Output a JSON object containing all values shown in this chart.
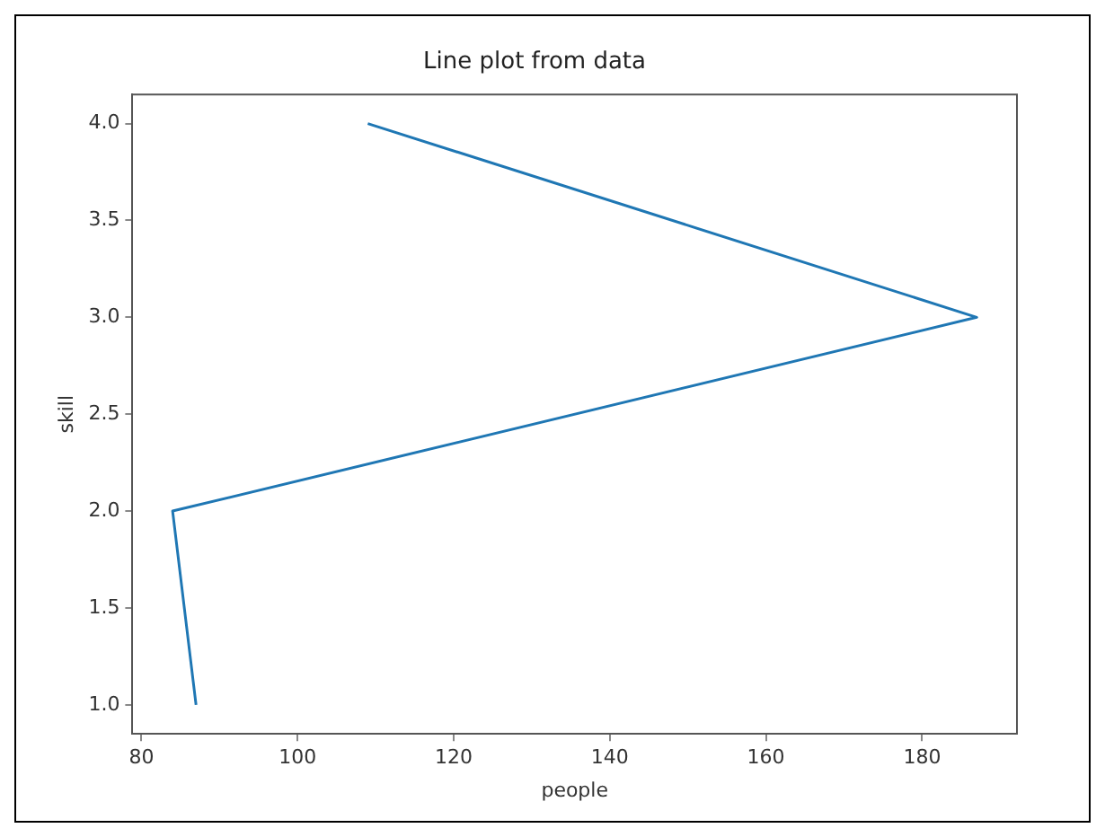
{
  "chart_data": {
    "type": "line",
    "title": "Line plot from data",
    "xlabel": "people",
    "ylabel": "skill",
    "series": [
      {
        "color": "#1f77b4",
        "x": [
          87,
          84,
          187,
          109
        ],
        "values": [
          1,
          2,
          3,
          4
        ]
      }
    ],
    "xlim": [
      78.85,
      192.15
    ],
    "xticks": [
      80,
      100,
      120,
      140,
      160,
      180
    ],
    "ylim": [
      0.85,
      4.15
    ],
    "yticks": [
      {
        "value": 1,
        "label": "1.0"
      },
      {
        "value": 1.5,
        "label": "1.5"
      },
      {
        "value": 2,
        "label": "2.0"
      },
      {
        "value": 2.5,
        "label": "2.5"
      },
      {
        "value": 3,
        "label": "3.0"
      },
      {
        "value": 3.5,
        "label": "3.5"
      },
      {
        "value": 4,
        "label": "4.0"
      }
    ],
    "grid": false,
    "legend": false,
    "marker": "none",
    "line_style": "solid"
  }
}
